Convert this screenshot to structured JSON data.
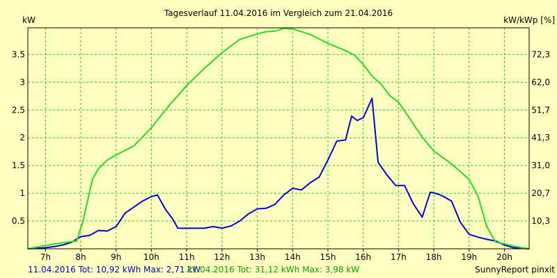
{
  "chart_data": {
    "type": "line",
    "title": "Tagesverlauf 11.04.2016 im Vergleich zum 21.04.2016",
    "ylabel_left": "kW",
    "ylabel_right": "kW/kWp [%]",
    "xlim": [
      6.5,
      20.7
    ],
    "ylim": [
      0,
      3.98
    ],
    "x_ticks": [
      7,
      8,
      9,
      10,
      11,
      12,
      13,
      14,
      15,
      16,
      17,
      18,
      19,
      20
    ],
    "x_tick_labels": [
      "7h",
      "8h",
      "9h",
      "10h",
      "11h",
      "12h",
      "13h",
      "14h",
      "15h",
      "16h",
      "17h",
      "18h",
      "19h",
      "20h"
    ],
    "y_ticks_left": [
      0.5,
      1,
      1.5,
      2,
      2.5,
      3,
      3.5
    ],
    "y_tick_labels_left": [
      "0.5",
      "1",
      "1.5",
      "2",
      "2.5",
      "3",
      "3.5"
    ],
    "y_ticks_right_at": [
      0.5,
      1,
      1.5,
      2,
      2.5,
      3,
      3.5
    ],
    "y_tick_labels_right": [
      "10,3",
      "20,7",
      "31,0",
      "41,3",
      "51,7",
      "62,0",
      "72,3"
    ],
    "grid": true,
    "series": [
      {
        "name": "11.04.2016",
        "color": "#0000dd",
        "x": [
          6.5,
          6.75,
          7.0,
          7.25,
          7.5,
          7.75,
          8.0,
          8.25,
          8.5,
          8.75,
          9.0,
          9.25,
          9.5,
          9.75,
          10.0,
          10.17,
          10.4,
          10.6,
          10.75,
          11.0,
          11.25,
          11.5,
          11.75,
          12.0,
          12.25,
          12.5,
          12.75,
          13.0,
          13.25,
          13.5,
          13.75,
          14.0,
          14.25,
          14.5,
          14.75,
          15.0,
          15.25,
          15.5,
          15.67,
          15.83,
          16.0,
          16.25,
          16.42,
          16.67,
          16.92,
          17.17,
          17.42,
          17.67,
          17.9,
          18.1,
          18.25,
          18.5,
          18.75,
          19.0,
          19.25,
          19.5,
          19.75,
          20.0,
          20.25,
          20.5,
          20.7
        ],
        "values": [
          0.0,
          0.01,
          0.02,
          0.04,
          0.07,
          0.12,
          0.22,
          0.24,
          0.33,
          0.32,
          0.4,
          0.64,
          0.75,
          0.86,
          0.94,
          0.97,
          0.71,
          0.54,
          0.37,
          0.37,
          0.37,
          0.37,
          0.4,
          0.37,
          0.41,
          0.5,
          0.63,
          0.72,
          0.73,
          0.8,
          0.97,
          1.09,
          1.06,
          1.19,
          1.29,
          1.6,
          1.94,
          1.96,
          2.39,
          2.31,
          2.36,
          2.71,
          1.56,
          1.33,
          1.14,
          1.14,
          0.81,
          0.57,
          1.02,
          0.99,
          0.95,
          0.86,
          0.48,
          0.26,
          0.21,
          0.17,
          0.14,
          0.07,
          0.02,
          0.01,
          0.0
        ]
      },
      {
        "name": "21.04.2016",
        "color": "#22dd22",
        "x": [
          6.5,
          7.0,
          7.5,
          7.88,
          8.05,
          8.33,
          8.5,
          8.75,
          9.0,
          9.5,
          10.0,
          10.5,
          11.0,
          11.5,
          12.0,
          12.5,
          13.0,
          13.25,
          13.5,
          13.75,
          14.0,
          14.5,
          15.0,
          15.5,
          15.75,
          16.0,
          16.25,
          16.5,
          16.75,
          17.0,
          17.25,
          17.5,
          17.75,
          18.0,
          18.5,
          19.0,
          19.25,
          19.5,
          19.75,
          20.0,
          20.25,
          20.5,
          20.7
        ],
        "values": [
          0.0,
          0.06,
          0.11,
          0.14,
          0.47,
          1.25,
          1.44,
          1.6,
          1.69,
          1.85,
          2.18,
          2.58,
          2.94,
          3.25,
          3.53,
          3.77,
          3.87,
          3.91,
          3.92,
          3.97,
          3.96,
          3.86,
          3.7,
          3.57,
          3.49,
          3.32,
          3.11,
          2.97,
          2.76,
          2.64,
          2.41,
          2.17,
          1.95,
          1.76,
          1.53,
          1.25,
          0.95,
          0.4,
          0.12,
          0.09,
          0.05,
          0.02,
          0.0
        ]
      }
    ],
    "footer": {
      "series1_summary": "11.04.2016 Tot: 10,92 kWh Max: 2,71 kW",
      "series2_summary": "21.04.2016 Tot: 31,12 kWh Max: 3,98 kW",
      "credit": "SunnyReport pinxit"
    }
  }
}
